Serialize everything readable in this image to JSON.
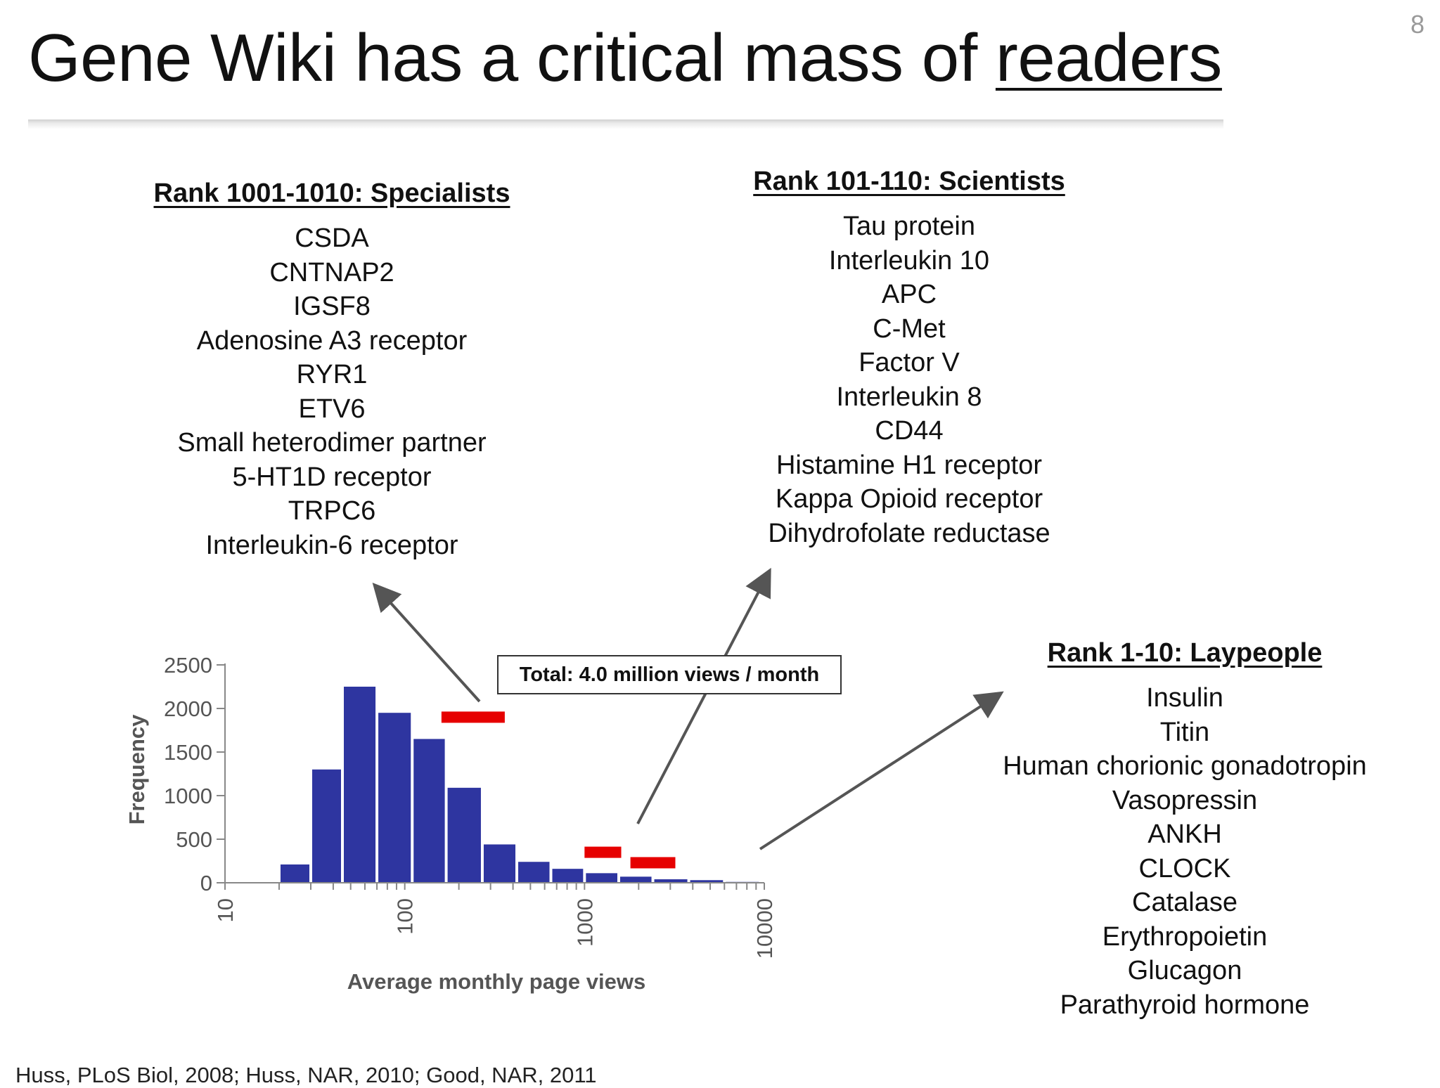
{
  "slide_number": "8",
  "title": {
    "prefix": "Gene Wiki has a critical mass of ",
    "emphasis": "readers"
  },
  "groups": {
    "specialists": {
      "heading": "Rank 1001-1010: Specialists",
      "items": [
        "CSDA",
        "CNTNAP2",
        "IGSF8",
        "Adenosine A3 receptor",
        "RYR1",
        "ETV6",
        "Small heterodimer partner",
        "5-HT1D receptor",
        "TRPC6",
        "Interleukin-6 receptor"
      ]
    },
    "scientists": {
      "heading": "Rank 101-110: Scientists",
      "items": [
        "Tau protein",
        "Interleukin 10",
        "APC",
        "C-Met",
        "Factor V",
        "Interleukin 8",
        "CD44",
        "Histamine H1 receptor",
        "Kappa Opioid receptor",
        "Dihydrofolate reductase"
      ]
    },
    "laypeople": {
      "heading": "Rank 1-10: Laypeople",
      "items": [
        "Insulin",
        "Titin",
        "Human chorionic gonadotropin",
        "Vasopressin",
        "ANKH",
        "CLOCK",
        "Catalase",
        "Erythropoietin",
        "Glucagon",
        "Parathyroid hormone"
      ]
    }
  },
  "total_label": "Total: 4.0 million views / month",
  "citation": "Huss, PLoS Biol, 2008; Huss, NAR, 2010; Good, NAR, 2011",
  "colors": {
    "bar": "#2e35a0",
    "marker": "#e60000",
    "arrow": "#555555",
    "axis": "#888888"
  },
  "chart_data": {
    "type": "bar",
    "xlabel": "Average monthly page views",
    "ylabel": "Frequency",
    "xscale": "log",
    "xlim": [
      10,
      10000
    ],
    "ylim": [
      0,
      2500
    ],
    "xticks": [
      "10",
      "100",
      "1000",
      "10000"
    ],
    "yticks": [
      0,
      500,
      1000,
      1500,
      2000,
      2500
    ],
    "bins": [
      {
        "x_from": 20,
        "x_to": 30,
        "value": 210
      },
      {
        "x_from": 30,
        "x_to": 45,
        "value": 1300
      },
      {
        "x_from": 45,
        "x_to": 70,
        "value": 2250
      },
      {
        "x_from": 70,
        "x_to": 110,
        "value": 1950
      },
      {
        "x_from": 110,
        "x_to": 170,
        "value": 1650
      },
      {
        "x_from": 170,
        "x_to": 270,
        "value": 1090
      },
      {
        "x_from": 270,
        "x_to": 420,
        "value": 440
      },
      {
        "x_from": 420,
        "x_to": 650,
        "value": 240
      },
      {
        "x_from": 650,
        "x_to": 1000,
        "value": 160
      },
      {
        "x_from": 1000,
        "x_to": 1550,
        "value": 110
      },
      {
        "x_from": 1550,
        "x_to": 2400,
        "value": 70
      },
      {
        "x_from": 2400,
        "x_to": 3800,
        "value": 40
      },
      {
        "x_from": 3800,
        "x_to": 6000,
        "value": 30
      },
      {
        "x_from": 6000,
        "x_to": 9500,
        "value": 10
      }
    ],
    "rank_markers": [
      {
        "name": "Rank 1001-1010",
        "x_from": 160,
        "x_to": 360,
        "value": 1900
      },
      {
        "name": "Rank 101-110",
        "x_from": 1000,
        "x_to": 1600,
        "value": 350
      },
      {
        "name": "Rank 1-10",
        "x_from": 1800,
        "x_to": 3200,
        "value": 230
      }
    ]
  }
}
